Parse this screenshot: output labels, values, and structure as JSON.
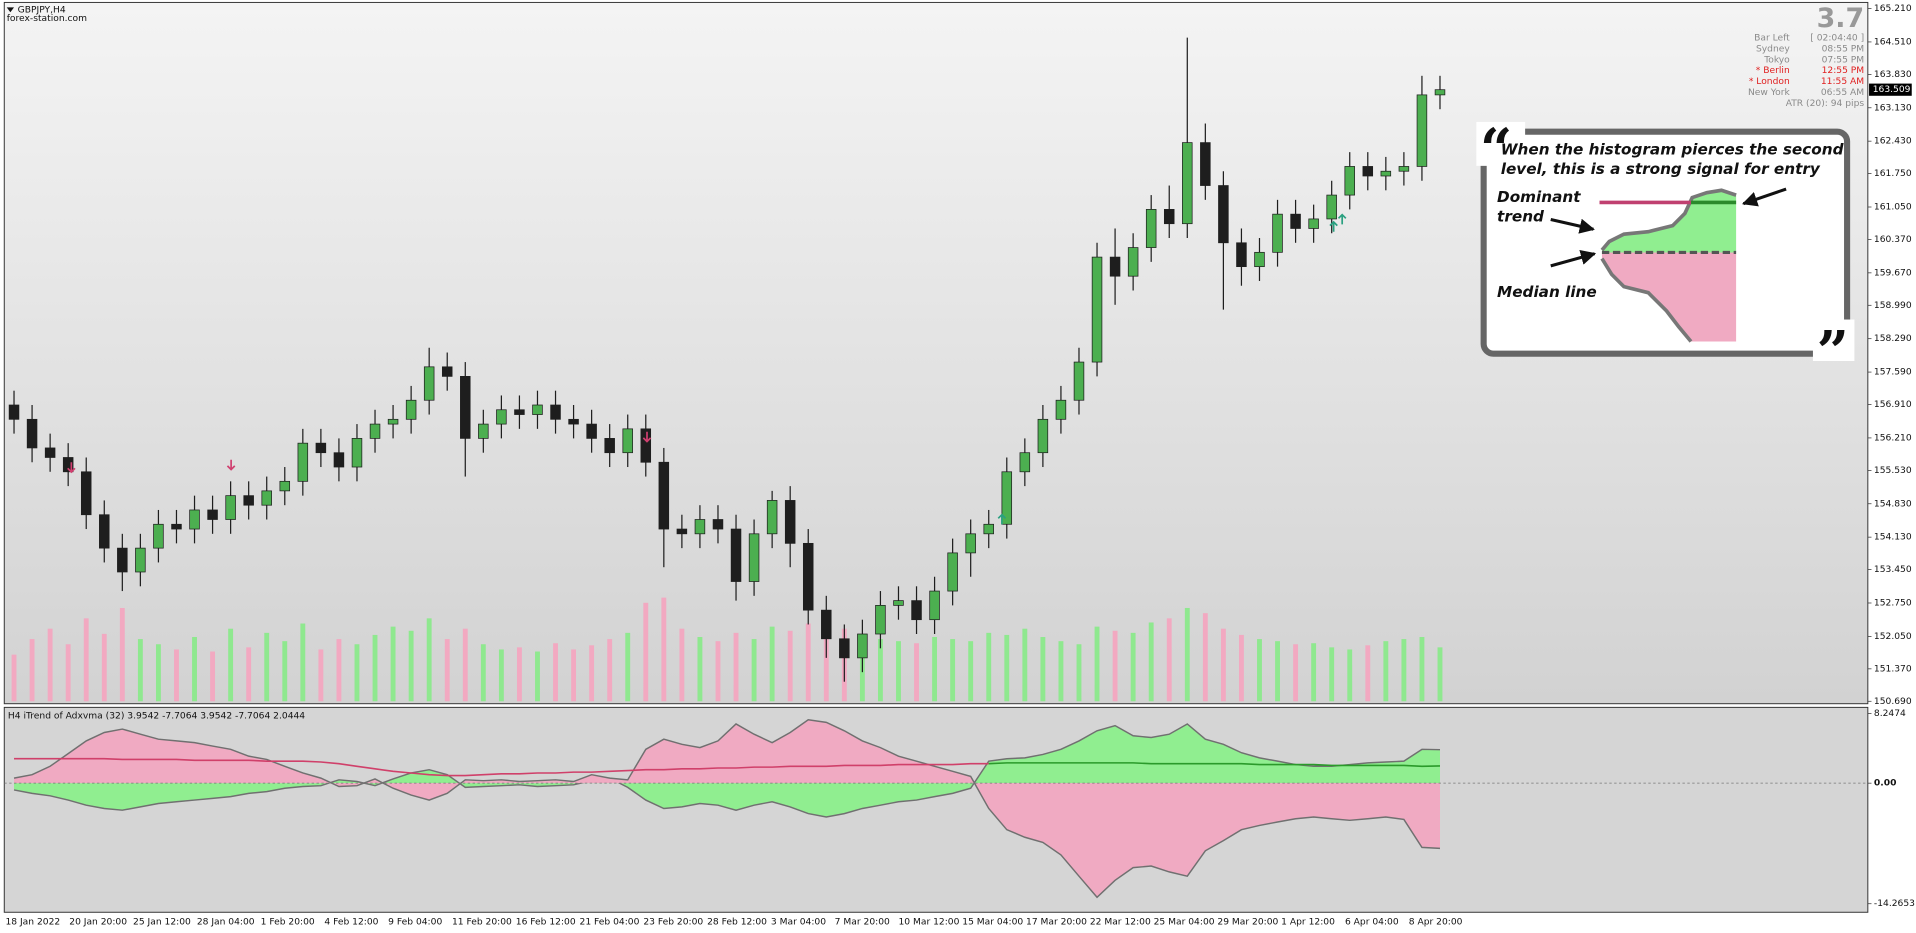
{
  "chart_data": [
    {
      "type": "candlestick",
      "title": "GBPJPY,H4",
      "subtitle": "forex-station.com",
      "open": [
        156.9,
        156.6,
        156.0,
        155.8,
        155.5,
        154.6,
        153.9,
        153.4,
        153.9,
        154.4,
        154.3,
        154.7,
        154.5,
        155.0,
        154.8,
        155.1,
        155.3,
        156.1,
        155.9,
        155.6,
        156.2,
        156.5,
        156.6,
        157.0,
        157.7,
        157.5,
        156.2,
        156.5,
        156.8,
        156.7,
        156.9,
        156.6,
        156.5,
        156.2,
        155.9,
        156.4,
        155.7,
        154.3,
        154.2,
        154.5,
        154.3,
        153.2,
        154.2,
        154.9,
        154.0,
        152.6,
        152.0,
        151.6,
        152.1,
        152.7,
        152.8,
        152.4,
        153.0,
        153.8,
        154.2,
        154.4,
        155.5,
        155.9,
        156.6,
        157.0,
        157.8,
        160.0,
        159.6,
        160.2,
        161.0,
        160.7,
        162.4,
        161.5,
        160.3,
        159.8,
        160.1,
        160.9,
        160.6,
        160.8,
        161.3,
        161.9,
        161.7,
        161.8,
        161.9,
        163.4
      ],
      "high": [
        157.2,
        156.9,
        156.3,
        156.1,
        155.8,
        154.9,
        154.2,
        154.2,
        154.7,
        154.7,
        155.0,
        155.0,
        155.3,
        155.3,
        155.4,
        155.6,
        156.4,
        156.4,
        156.2,
        156.5,
        156.8,
        156.9,
        157.3,
        158.1,
        158.0,
        157.8,
        156.8,
        157.1,
        157.1,
        157.2,
        157.2,
        156.9,
        156.8,
        156.5,
        156.7,
        156.7,
        156.0,
        154.6,
        154.8,
        154.8,
        154.6,
        154.5,
        155.1,
        155.2,
        154.3,
        152.9,
        152.3,
        152.4,
        153.0,
        153.1,
        153.1,
        153.3,
        154.1,
        154.5,
        154.7,
        155.8,
        156.2,
        156.9,
        157.3,
        158.1,
        160.3,
        160.6,
        160.5,
        161.3,
        161.5,
        164.6,
        162.8,
        161.8,
        160.6,
        160.4,
        161.2,
        161.2,
        161.1,
        161.6,
        162.2,
        162.2,
        162.1,
        162.2,
        163.8,
        163.8
      ],
      "low": [
        156.3,
        155.7,
        155.5,
        155.2,
        154.3,
        153.6,
        153.0,
        153.1,
        153.6,
        154.0,
        154.0,
        154.2,
        154.2,
        154.5,
        154.5,
        154.8,
        155.0,
        155.6,
        155.3,
        155.3,
        155.9,
        156.2,
        156.3,
        156.7,
        157.2,
        155.4,
        155.9,
        156.2,
        156.4,
        156.4,
        156.3,
        156.2,
        155.9,
        155.6,
        155.6,
        155.4,
        153.5,
        153.9,
        153.9,
        154.0,
        152.8,
        152.9,
        153.9,
        153.5,
        152.3,
        151.6,
        151.1,
        151.3,
        151.8,
        152.4,
        152.1,
        152.1,
        152.7,
        153.3,
        153.9,
        154.1,
        155.2,
        155.6,
        156.3,
        156.7,
        157.5,
        159.0,
        159.3,
        159.9,
        160.4,
        160.4,
        161.2,
        158.9,
        159.4,
        159.5,
        159.8,
        160.3,
        160.3,
        160.5,
        161.0,
        161.4,
        161.4,
        161.5,
        161.6,
        163.1
      ],
      "close": [
        156.6,
        156.0,
        155.8,
        155.5,
        154.6,
        153.9,
        153.4,
        153.9,
        154.4,
        154.3,
        154.7,
        154.5,
        155.0,
        154.8,
        155.1,
        155.3,
        156.1,
        155.9,
        155.6,
        156.2,
        156.5,
        156.6,
        157.0,
        157.7,
        157.5,
        156.2,
        156.5,
        156.8,
        156.7,
        156.9,
        156.6,
        156.5,
        156.2,
        155.9,
        156.4,
        155.7,
        154.3,
        154.2,
        154.5,
        154.3,
        153.2,
        154.2,
        154.9,
        154.0,
        152.6,
        152.0,
        151.6,
        152.1,
        152.7,
        152.8,
        152.4,
        153.0,
        153.8,
        154.2,
        154.4,
        155.5,
        155.9,
        156.6,
        157.0,
        157.8,
        160.0,
        159.6,
        160.2,
        161.0,
        160.7,
        162.4,
        161.5,
        160.3,
        159.8,
        160.1,
        160.9,
        160.6,
        160.8,
        161.3,
        161.9,
        161.7,
        161.8,
        161.9,
        163.4,
        163.509
      ],
      "volume": [
        45,
        60,
        70,
        55,
        80,
        65,
        90,
        60,
        55,
        50,
        62,
        48,
        70,
        52,
        66,
        58,
        75,
        50,
        60,
        55,
        64,
        72,
        68,
        80,
        60,
        70,
        55,
        50,
        52,
        48,
        56,
        50,
        54,
        60,
        66,
        95,
        100,
        70,
        62,
        58,
        66,
        60,
        72,
        68,
        75,
        80,
        70,
        64,
        60,
        58,
        56,
        62,
        60,
        58,
        66,
        64,
        70,
        62,
        58,
        55,
        72,
        68,
        66,
        76,
        80,
        90,
        85,
        70,
        64,
        60,
        58,
        55,
        56,
        52,
        50,
        54,
        58,
        60,
        62,
        52
      ],
      "colors": {
        "up": "#4caf50",
        "down": "#1e1e1e",
        "wick": "#1e1e1e",
        "volume_up": "#8fe88f",
        "volume_down": "#f2a9c1"
      },
      "ylim": [
        150.69,
        165.21
      ],
      "yticks": [
        {
          "value": 165.21,
          "label": "165.210"
        },
        {
          "value": 164.51,
          "label": "164.510"
        },
        {
          "value": 163.83,
          "label": "163.830"
        },
        {
          "value": 163.13,
          "label": "163.130"
        },
        {
          "value": 162.43,
          "label": "162.430"
        },
        {
          "value": 161.75,
          "label": "161.750"
        },
        {
          "value": 161.05,
          "label": "161.050"
        },
        {
          "value": 160.37,
          "label": "160.370"
        },
        {
          "value": 159.67,
          "label": "159.670"
        },
        {
          "value": 158.99,
          "label": "158.990"
        },
        {
          "value": 158.29,
          "label": "158.290"
        },
        {
          "value": 157.59,
          "label": "157.590"
        },
        {
          "value": 156.91,
          "label": "156.910"
        },
        {
          "value": 156.21,
          "label": "156.210"
        },
        {
          "value": 155.53,
          "label": "155.530"
        },
        {
          "value": 154.83,
          "label": "154.830"
        },
        {
          "value": 154.13,
          "label": "154.130"
        },
        {
          "value": 153.45,
          "label": "153.450"
        },
        {
          "value": 152.75,
          "label": "152.750"
        },
        {
          "value": 152.05,
          "label": "152.050"
        },
        {
          "value": 151.37,
          "label": "151.370"
        },
        {
          "value": 150.69,
          "label": "150.690"
        }
      ],
      "price_label": {
        "value": 163.509,
        "label": "163.509"
      },
      "x_labels": [
        "18 Jan 2022",
        "20 Jan 20:00",
        "25 Jan 12:00",
        "28 Jan 04:00",
        "1 Feb 20:00",
        "4 Feb 12:00",
        "9 Feb 04:00",
        "11 Feb 20:00",
        "16 Feb 12:00",
        "21 Feb 04:00",
        "23 Feb 20:00",
        "28 Feb 12:00",
        "3 Mar 04:00",
        "7 Mar 20:00",
        "10 Mar 12:00",
        "15 Mar 04:00",
        "17 Mar 20:00",
        "22 Mar 12:00",
        "25 Mar 04:00",
        "29 Mar 20:00",
        "1 Apr 12:00",
        "6 Apr 04:00",
        "8 Apr 20:00"
      ]
    },
    {
      "type": "area",
      "title": "H4 iTrend of Adxvma (32) 3.9542 -7.7064 3.9542 -7.7064 2.0444",
      "ylim": [
        -14.2653,
        8.2474
      ],
      "yticks": [
        8.2474,
        {
          "value": 0,
          "label": "0.00"
        },
        -14.2653
      ],
      "zero_line": true,
      "series": [
        {
          "style": "area",
          "color": "#90ee90",
          "outline": "#707070",
          "values": [
            -0.8,
            -1.2,
            -1.5,
            -2.0,
            -2.6,
            -3.0,
            -3.2,
            -2.8,
            -2.4,
            -2.2,
            -2.0,
            -1.8,
            -1.6,
            -1.2,
            -1.0,
            -0.6,
            -0.4,
            -0.3,
            0.4,
            0.2,
            -0.3,
            0.5,
            1.2,
            1.6,
            1.0,
            -0.5,
            -0.4,
            -0.3,
            -0.2,
            -0.4,
            -0.3,
            -0.2,
            0.3,
            0.6,
            -0.5,
            -2.0,
            -3.0,
            -2.8,
            -2.4,
            -2.6,
            -3.2,
            -2.6,
            -2.2,
            -2.8,
            -3.6,
            -4.0,
            -3.6,
            -3.0,
            -2.6,
            -2.2,
            -2.0,
            -1.6,
            -1.2,
            -0.6,
            2.6,
            2.9,
            3.0,
            3.4,
            4.0,
            5.0,
            6.2,
            6.8,
            5.6,
            5.4,
            5.8,
            7.0,
            5.2,
            4.6,
            3.6,
            3.0,
            2.6,
            2.2,
            2.0,
            2.0,
            2.2,
            2.4,
            2.5,
            2.6,
            4.0,
            3.9542
          ]
        },
        {
          "style": "area",
          "color": "#f0aac2",
          "outline": "#707070",
          "values": [
            0.6,
            1.0,
            2.0,
            3.5,
            5.0,
            6.0,
            6.4,
            5.8,
            5.2,
            5.0,
            4.8,
            4.4,
            4.0,
            3.2,
            2.8,
            2.0,
            1.2,
            0.6,
            -0.4,
            -0.3,
            0.5,
            -0.6,
            -1.4,
            -2.0,
            -1.2,
            0.4,
            0.3,
            0.4,
            0.2,
            0.3,
            0.4,
            0.2,
            1.0,
            0.6,
            0.4,
            4.0,
            5.2,
            4.6,
            4.2,
            5.0,
            7.0,
            5.8,
            4.8,
            6.0,
            7.5,
            7.2,
            6.2,
            5.0,
            4.2,
            3.2,
            2.6,
            2.0,
            1.4,
            0.8,
            -3.0,
            -5.5,
            -6.4,
            -7.0,
            -8.5,
            -11.0,
            -13.5,
            -11.5,
            -10.0,
            -9.8,
            -10.5,
            -11.0,
            -8.0,
            -6.8,
            -5.5,
            -5.0,
            -4.6,
            -4.2,
            -4.0,
            -4.2,
            -4.4,
            -4.2,
            -4.0,
            -4.3,
            -7.6,
            -7.7064
          ]
        },
        {
          "style": "line",
          "color": "#d0406a",
          "values": [
            2.9,
            2.9,
            2.9,
            2.9,
            2.9,
            2.9,
            2.8,
            2.8,
            2.8,
            2.8,
            2.7,
            2.7,
            2.7,
            2.7,
            2.6,
            2.6,
            2.6,
            2.5,
            2.3,
            2.0,
            1.7,
            1.4,
            1.2,
            1.0,
            0.9,
            0.9,
            1.0,
            1.1,
            1.1,
            1.2,
            1.2,
            1.3,
            1.3,
            1.4,
            1.5,
            1.6,
            1.6,
            1.7,
            1.7,
            1.8,
            1.8,
            1.9,
            1.9,
            2.0,
            2.0,
            2.0,
            2.1,
            2.1,
            2.1,
            2.2,
            2.2,
            2.2,
            2.2,
            2.3,
            2.3,
            null,
            null,
            null,
            null,
            null,
            null,
            null,
            null,
            null,
            null,
            null,
            null,
            null,
            null,
            null,
            null,
            null,
            null,
            null,
            null,
            null,
            null,
            null,
            null,
            null
          ]
        },
        {
          "style": "line",
          "color": "#2a9a2a",
          "values": [
            null,
            null,
            null,
            null,
            null,
            null,
            null,
            null,
            null,
            null,
            null,
            null,
            null,
            null,
            null,
            null,
            null,
            null,
            null,
            null,
            null,
            null,
            null,
            null,
            null,
            null,
            null,
            null,
            null,
            null,
            null,
            null,
            null,
            null,
            null,
            null,
            null,
            null,
            null,
            null,
            null,
            null,
            null,
            null,
            null,
            null,
            null,
            null,
            null,
            null,
            null,
            null,
            null,
            null,
            2.3,
            2.4,
            2.4,
            2.4,
            2.4,
            2.4,
            2.4,
            2.4,
            2.4,
            2.3,
            2.3,
            2.3,
            2.3,
            2.3,
            2.3,
            2.2,
            2.2,
            2.2,
            2.2,
            2.1,
            2.1,
            2.1,
            2.1,
            2.1,
            2.0,
            2.0444
          ]
        }
      ]
    }
  ],
  "info_panel": {
    "big": "3.7",
    "rows": [
      {
        "label": "Bar Left",
        "value": "[ 02:04:40 ]",
        "color": "#8a8a8a"
      },
      {
        "label": "Sydney",
        "value": "08:55 PM",
        "color": "#8a8a8a"
      },
      {
        "label": "Tokyo",
        "value": "07:55 PM",
        "color": "#8a8a8a"
      },
      {
        "label": "* Berlin",
        "value": "12:55 PM",
        "color": "#e02020"
      },
      {
        "label": "* London",
        "value": "11:55 AM",
        "color": "#e02020"
      },
      {
        "label": "New York",
        "value": "06:55 AM",
        "color": "#8a8a8a"
      }
    ],
    "atr": "ATR (20): 94 pips"
  },
  "annotation": {
    "open_quote": "“",
    "close_quote": "”",
    "lines": [
      "When the histogram pierces the second",
      "level, this is a strong signal for entry"
    ],
    "dominant": [
      "Dominant",
      "trend"
    ],
    "median": "Median line"
  }
}
